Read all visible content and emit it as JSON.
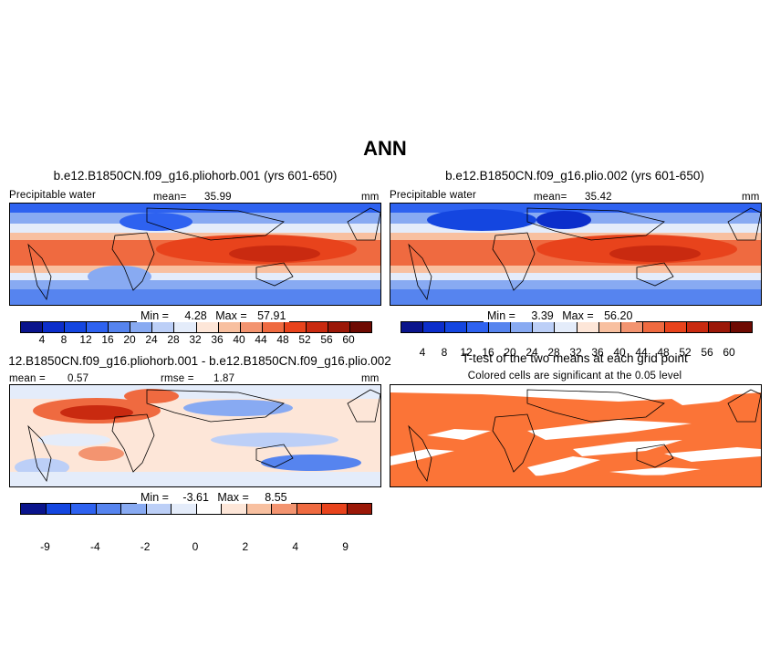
{
  "figure": {
    "title": "ANN"
  },
  "colors": {
    "ramp": [
      "#0a148c",
      "#0c2ecb",
      "#1446e0",
      "#2e62f0",
      "#5684ef",
      "#88aaf2",
      "#bccff7",
      "#e4ecfa",
      "#fde6d8",
      "#f8c0a0",
      "#f39470",
      "#ef6a40",
      "#e8431c",
      "#c92a10",
      "#9b1808",
      "#6e0a02"
    ],
    "diff_ramp": [
      "#0a148c",
      "#1446e0",
      "#2e62f0",
      "#5684ef",
      "#88aaf2",
      "#bccff7",
      "#e4ecfa",
      "#ffffff",
      "#fde6d8",
      "#f8c0a0",
      "#f39470",
      "#ef6a40",
      "#e8431c",
      "#9b1808"
    ],
    "significance": "#fb7437"
  },
  "panels": {
    "top_left": {
      "title": "b.e12.B1850CN.f09_g16.pliohorb.001 (yrs 601-650)",
      "left_label": "Precipitable water",
      "mean_label": "mean=",
      "mean_value": "35.99",
      "units": "mm",
      "min_label": "Min =",
      "min_value": "4.28",
      "max_label": "Max =",
      "max_value": "57.91",
      "colorbar_labels": [
        "4",
        "8",
        "12",
        "16",
        "20",
        "24",
        "28",
        "32",
        "36",
        "40",
        "44",
        "48",
        "52",
        "56",
        "60"
      ]
    },
    "top_right": {
      "title": "b.e12.B1850CN.f09_g16.plio.002 (yrs 601-650)",
      "left_label": "Precipitable water",
      "mean_label": "mean=",
      "mean_value": "35.42",
      "units": "mm",
      "min_label": "Min =",
      "min_value": "3.39",
      "max_label": "Max =",
      "max_value": "56.20",
      "colorbar_labels": [
        "4",
        "8",
        "12",
        "16",
        "20",
        "24",
        "28",
        "32",
        "36",
        "40",
        "44",
        "48",
        "52",
        "56",
        "60"
      ]
    },
    "bottom_left": {
      "title": "12.B1850CN.f09_g16.pliohorb.001 - b.e12.B1850CN.f09_g16.plio.002",
      "mean_label": "mean =",
      "mean_value": "0.57",
      "rmse_label": "rmse =",
      "rmse_value": "1.87",
      "units": "mm",
      "min_label": "Min =",
      "min_value": "-3.61",
      "max_label": "Max =",
      "max_value": "8.55",
      "colorbar_labels": [
        "-9",
        "-4",
        "-2",
        "0",
        "2",
        "4",
        "9"
      ]
    },
    "bottom_right": {
      "title": "T-test of the two means at each grid point",
      "subtitle": "Colored cells are significant at the 0.05 level"
    }
  }
}
